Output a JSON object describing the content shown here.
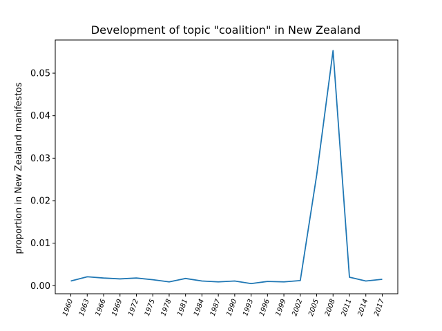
{
  "chart_data": {
    "type": "line",
    "title": "Development of topic \"coalition\" in New Zealand",
    "xlabel": "",
    "ylabel": "proportion in New Zealand manifestos",
    "categories": [
      "1960",
      "1963",
      "1966",
      "1969",
      "1972",
      "1975",
      "1978",
      "1981",
      "1984",
      "1987",
      "1990",
      "1993",
      "1996",
      "1999",
      "2002",
      "2005",
      "2008",
      "2011",
      "2014",
      "2017"
    ],
    "series": [
      {
        "color": "#1f77b4",
        "values": [
          0.0011,
          0.0021,
          0.0018,
          0.0016,
          0.0018,
          0.0014,
          0.0009,
          0.0017,
          0.0011,
          0.0009,
          0.0011,
          0.0005,
          0.001,
          0.0009,
          0.0012,
          0.026,
          0.0553,
          0.002,
          0.0011,
          0.0015
        ]
      }
    ],
    "ylim": [
      -0.0019,
      0.0578
    ],
    "yticks": [
      "0.00",
      "0.01",
      "0.02",
      "0.03",
      "0.04",
      "0.05"
    ],
    "grid": false,
    "legend": "none"
  }
}
